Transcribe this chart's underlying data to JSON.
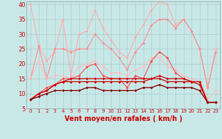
{
  "background_color": "#c8e8e8",
  "grid_color": "#aacccc",
  "xlabel": "Vent moyen/en rafales ( km/h )",
  "xlabel_color": "#cc0000",
  "xlabel_fontsize": 7,
  "tick_color": "#cc0000",
  "tick_fontsize": 6,
  "xlim": [
    -0.5,
    23.5
  ],
  "ylim": [
    5,
    41
  ],
  "yticks": [
    5,
    10,
    15,
    20,
    25,
    30,
    35,
    40
  ],
  "xticks": [
    0,
    1,
    2,
    3,
    4,
    5,
    6,
    7,
    8,
    9,
    10,
    11,
    12,
    13,
    14,
    15,
    16,
    17,
    18,
    19,
    20,
    21,
    22,
    23
  ],
  "series": [
    {
      "color": "#ffaaaa",
      "alpha": 1.0,
      "linewidth": 0.8,
      "markersize": 2.0,
      "data": [
        40,
        26,
        21,
        24,
        35,
        16,
        30,
        31,
        38,
        32,
        28,
        24,
        22,
        29,
        33,
        38,
        41,
        40,
        33,
        35,
        31,
        25,
        12,
        25
      ]
    },
    {
      "color": "#ff8888",
      "alpha": 1.0,
      "linewidth": 0.8,
      "markersize": 2.0,
      "data": [
        15,
        26,
        15,
        25,
        25,
        24,
        25,
        25,
        30,
        27,
        25,
        22,
        18,
        24,
        27,
        33,
        35,
        35,
        32,
        35,
        31,
        25,
        12,
        24
      ]
    },
    {
      "color": "#ffbbbb",
      "alpha": 1.0,
      "linewidth": 0.8,
      "markersize": 2.0,
      "data": [
        15,
        21,
        15,
        16,
        16,
        15,
        19,
        20,
        21,
        19,
        17,
        17,
        16,
        18,
        19,
        22,
        22,
        19,
        18,
        16,
        15,
        14,
        8,
        11
      ]
    },
    {
      "color": "#ff4444",
      "alpha": 1.0,
      "linewidth": 0.8,
      "markersize": 2.0,
      "data": [
        8,
        10,
        12,
        13,
        15,
        15,
        16,
        19,
        20,
        16,
        15,
        15,
        12,
        16,
        15,
        21,
        24,
        22,
        17,
        15,
        14,
        14,
        7,
        7
      ]
    },
    {
      "color": "#cc0000",
      "alpha": 1.0,
      "linewidth": 0.9,
      "markersize": 2.0,
      "data": [
        8,
        10,
        11,
        13,
        14,
        15,
        15,
        15,
        15,
        15,
        15,
        15,
        15,
        15,
        15,
        15,
        16,
        15,
        15,
        15,
        14,
        14,
        7,
        7
      ]
    },
    {
      "color": "#cc0000",
      "alpha": 1.0,
      "linewidth": 0.9,
      "markersize": 2.0,
      "data": [
        8,
        10,
        11,
        13,
        14,
        14,
        14,
        14,
        14,
        14,
        14,
        14,
        14,
        14,
        14,
        15,
        15,
        14,
        14,
        14,
        14,
        13,
        7,
        7
      ]
    },
    {
      "color": "#880000",
      "alpha": 1.0,
      "linewidth": 1.0,
      "markersize": 2.0,
      "data": [
        8,
        9,
        10,
        11,
        11,
        11,
        11,
        12,
        12,
        11,
        11,
        11,
        11,
        11,
        12,
        12,
        13,
        12,
        12,
        12,
        12,
        11,
        7,
        7
      ]
    }
  ],
  "arrow_chars": [
    "↙",
    "→",
    "↙",
    "↙",
    "↙",
    "↙",
    "↙",
    "↙",
    "↙",
    "↙",
    "↓",
    "↓",
    "↓",
    "↓",
    "↙",
    "↓",
    "↓",
    "↓",
    "↓",
    "↓",
    "↙",
    "↓",
    "↙",
    "↘"
  ]
}
